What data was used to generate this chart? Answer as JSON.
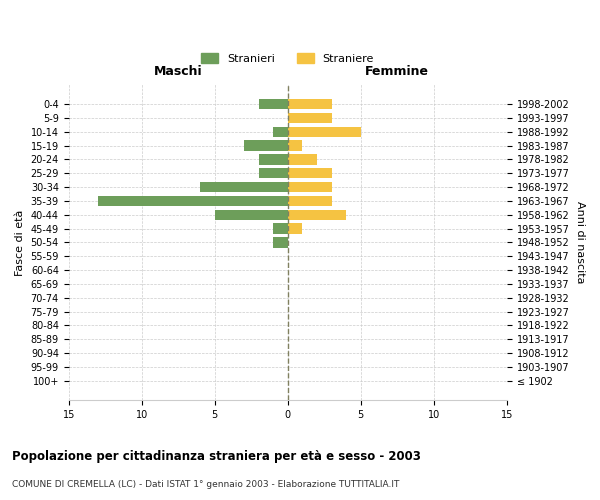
{
  "age_groups": [
    "100+",
    "95-99",
    "90-94",
    "85-89",
    "80-84",
    "75-79",
    "70-74",
    "65-69",
    "60-64",
    "55-59",
    "50-54",
    "45-49",
    "40-44",
    "35-39",
    "30-34",
    "25-29",
    "20-24",
    "15-19",
    "10-14",
    "5-9",
    "0-4"
  ],
  "birth_years": [
    "≤ 1902",
    "1903-1907",
    "1908-1912",
    "1913-1917",
    "1918-1922",
    "1923-1927",
    "1928-1932",
    "1933-1937",
    "1938-1942",
    "1943-1947",
    "1948-1952",
    "1953-1957",
    "1958-1962",
    "1963-1967",
    "1968-1972",
    "1973-1977",
    "1978-1982",
    "1983-1987",
    "1988-1992",
    "1993-1997",
    "1998-2002"
  ],
  "maschi": [
    0,
    0,
    0,
    0,
    0,
    0,
    0,
    0,
    0,
    0,
    1,
    1,
    5,
    13,
    6,
    2,
    2,
    3,
    1,
    0,
    2
  ],
  "femmine": [
    0,
    0,
    0,
    0,
    0,
    0,
    0,
    0,
    0,
    0,
    0,
    1,
    4,
    3,
    3,
    3,
    2,
    1,
    5,
    3,
    3
  ],
  "maschi_color": "#6d9e5a",
  "femmine_color": "#f5c342",
  "title": "Popolazione per cittadinanza straniera per età e sesso - 2003",
  "subtitle": "COMUNE DI CREMELLA (LC) - Dati ISTAT 1° gennaio 2003 - Elaborazione TUTTITALIA.IT",
  "legend_maschi": "Stranieri",
  "legend_femmine": "Straniere",
  "xlabel_left": "Maschi",
  "xlabel_right": "Femmine",
  "ylabel_left": "Fasce di età",
  "ylabel_right": "Anni di nascita",
  "xlim": 15,
  "background_color": "#ffffff",
  "grid_color": "#cccccc"
}
